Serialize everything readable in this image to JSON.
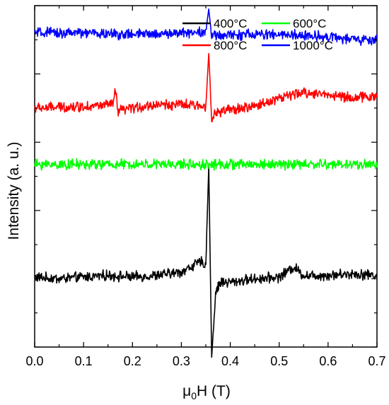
{
  "chart_data": {
    "type": "line",
    "title": "",
    "xlabel_prefix": "μ",
    "xlabel_sub": "0",
    "xlabel_suffix": "H (T)",
    "ylabel": "Intensity (a. u.)",
    "xlim": [
      0,
      0.7
    ],
    "ylim": [
      0,
      10
    ],
    "x_ticks": [
      "0.0",
      "0.1",
      "0.2",
      "0.3",
      "0.4",
      "0.5",
      "0.6",
      "0.7"
    ],
    "y_tick_labels_shown": false,
    "grid": false,
    "legend_position": "top-right",
    "series": [
      {
        "name": "400",
        "legend_unit": "°C",
        "color": "#000000",
        "baseline": 2.0,
        "points": [
          [
            0.0,
            2.05
          ],
          [
            0.05,
            2.0
          ],
          [
            0.1,
            2.05
          ],
          [
            0.15,
            2.1
          ],
          [
            0.2,
            2.05
          ],
          [
            0.25,
            2.1
          ],
          [
            0.3,
            2.2
          ],
          [
            0.34,
            2.5
          ],
          [
            0.35,
            2.4
          ],
          [
            0.356,
            5.3
          ],
          [
            0.362,
            -0.3
          ],
          [
            0.37,
            1.6
          ],
          [
            0.38,
            1.9
          ],
          [
            0.4,
            1.9
          ],
          [
            0.45,
            2.0
          ],
          [
            0.5,
            2.05
          ],
          [
            0.53,
            2.35
          ],
          [
            0.55,
            2.1
          ],
          [
            0.6,
            2.1
          ],
          [
            0.65,
            2.15
          ],
          [
            0.7,
            2.1
          ]
        ],
        "noise": 0.12
      },
      {
        "name": "600",
        "legend_unit": "°C",
        "color": "#00ff00",
        "baseline": 5.35,
        "points": [
          [
            0.0,
            5.35
          ],
          [
            0.1,
            5.35
          ],
          [
            0.2,
            5.35
          ],
          [
            0.3,
            5.35
          ],
          [
            0.4,
            5.35
          ],
          [
            0.5,
            5.35
          ],
          [
            0.6,
            5.35
          ],
          [
            0.7,
            5.35
          ]
        ],
        "noise": 0.12
      },
      {
        "name": "800",
        "legend_unit": "°C",
        "color": "#ff0000",
        "baseline": 7.0,
        "points": [
          [
            0.0,
            7.0
          ],
          [
            0.1,
            7.05
          ],
          [
            0.16,
            7.1
          ],
          [
            0.165,
            7.55
          ],
          [
            0.17,
            6.9
          ],
          [
            0.2,
            7.0
          ],
          [
            0.25,
            7.1
          ],
          [
            0.3,
            7.1
          ],
          [
            0.35,
            7.05
          ],
          [
            0.356,
            8.6
          ],
          [
            0.362,
            6.75
          ],
          [
            0.38,
            6.9
          ],
          [
            0.45,
            7.05
          ],
          [
            0.5,
            7.3
          ],
          [
            0.55,
            7.45
          ],
          [
            0.6,
            7.4
          ],
          [
            0.65,
            7.3
          ],
          [
            0.7,
            7.35
          ]
        ],
        "noise": 0.12
      },
      {
        "name": "1000",
        "legend_unit": "°C",
        "color": "#0000ff",
        "baseline": 9.2,
        "points": [
          [
            0.0,
            9.2
          ],
          [
            0.1,
            9.2
          ],
          [
            0.2,
            9.15
          ],
          [
            0.3,
            9.2
          ],
          [
            0.35,
            9.25
          ],
          [
            0.356,
            9.9
          ],
          [
            0.362,
            9.1
          ],
          [
            0.4,
            9.15
          ],
          [
            0.5,
            9.15
          ],
          [
            0.6,
            9.1
          ],
          [
            0.65,
            9.0
          ],
          [
            0.7,
            9.0
          ]
        ],
        "noise": 0.12
      }
    ]
  }
}
